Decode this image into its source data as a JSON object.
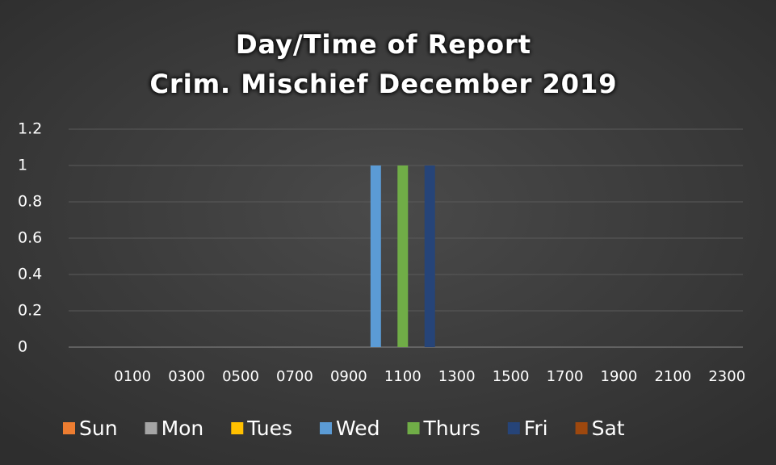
{
  "chart_data": {
    "type": "bar",
    "title": [
      "Day/Time of Report",
      "Crim. Mischief December 2019"
    ],
    "categories": [
      null,
      "0100",
      null,
      "0300",
      null,
      "0500",
      null,
      "0700",
      null,
      "0900",
      null,
      "1100",
      null,
      "1300",
      null,
      "1500",
      null,
      "1700",
      null,
      "1900",
      null,
      "2100",
      null,
      "2300"
    ],
    "series": [
      {
        "name": "Sun",
        "color": "#ed7d31",
        "values": [
          0,
          0,
          0,
          0,
          0,
          0,
          0,
          0,
          0,
          0,
          0,
          0,
          0,
          0,
          0,
          0,
          0,
          0,
          0,
          0,
          0,
          0,
          0,
          0
        ]
      },
      {
        "name": "Mon",
        "color": "#a5a5a5",
        "values": [
          0,
          0,
          0,
          0,
          0,
          0,
          0,
          0,
          0,
          0,
          0,
          0,
          0,
          0,
          0,
          0,
          0,
          0,
          0,
          0,
          0,
          0,
          0,
          0
        ]
      },
      {
        "name": "Tues",
        "color": "#ffc000",
        "values": [
          0,
          0,
          0,
          0,
          0,
          0,
          0,
          0,
          0,
          0,
          0,
          0,
          0,
          0,
          0,
          0,
          0,
          0,
          0,
          0,
          0,
          0,
          0,
          0
        ]
      },
      {
        "name": "Wed",
        "color": "#5b9bd5",
        "values": [
          0,
          0,
          0,
          0,
          0,
          0,
          0,
          0,
          0,
          0,
          1,
          0,
          0,
          0,
          0,
          0,
          0,
          0,
          0,
          0,
          0,
          0,
          0,
          0
        ]
      },
      {
        "name": "Thurs",
        "color": "#70ad47",
        "values": [
          0,
          0,
          0,
          0,
          0,
          0,
          0,
          0,
          0,
          0,
          0,
          1,
          0,
          0,
          0,
          0,
          0,
          0,
          0,
          0,
          0,
          0,
          0,
          0
        ]
      },
      {
        "name": "Fri",
        "color": "#264478",
        "values": [
          0,
          0,
          0,
          0,
          0,
          0,
          0,
          0,
          0,
          0,
          0,
          0,
          1,
          0,
          0,
          0,
          0,
          0,
          0,
          0,
          0,
          0,
          0,
          0
        ]
      },
      {
        "name": "Sat",
        "color": "#9e480e",
        "values": [
          0,
          0,
          0,
          0,
          0,
          0,
          0,
          0,
          0,
          0,
          0,
          0,
          0,
          0,
          0,
          0,
          0,
          0,
          0,
          0,
          0,
          0,
          0,
          0
        ]
      }
    ],
    "ylim": [
      0,
      1.2
    ],
    "yticks": [
      0,
      0.2,
      0.4,
      0.6,
      0.8,
      1,
      1.2
    ],
    "grid": true,
    "legend": "bottom"
  }
}
